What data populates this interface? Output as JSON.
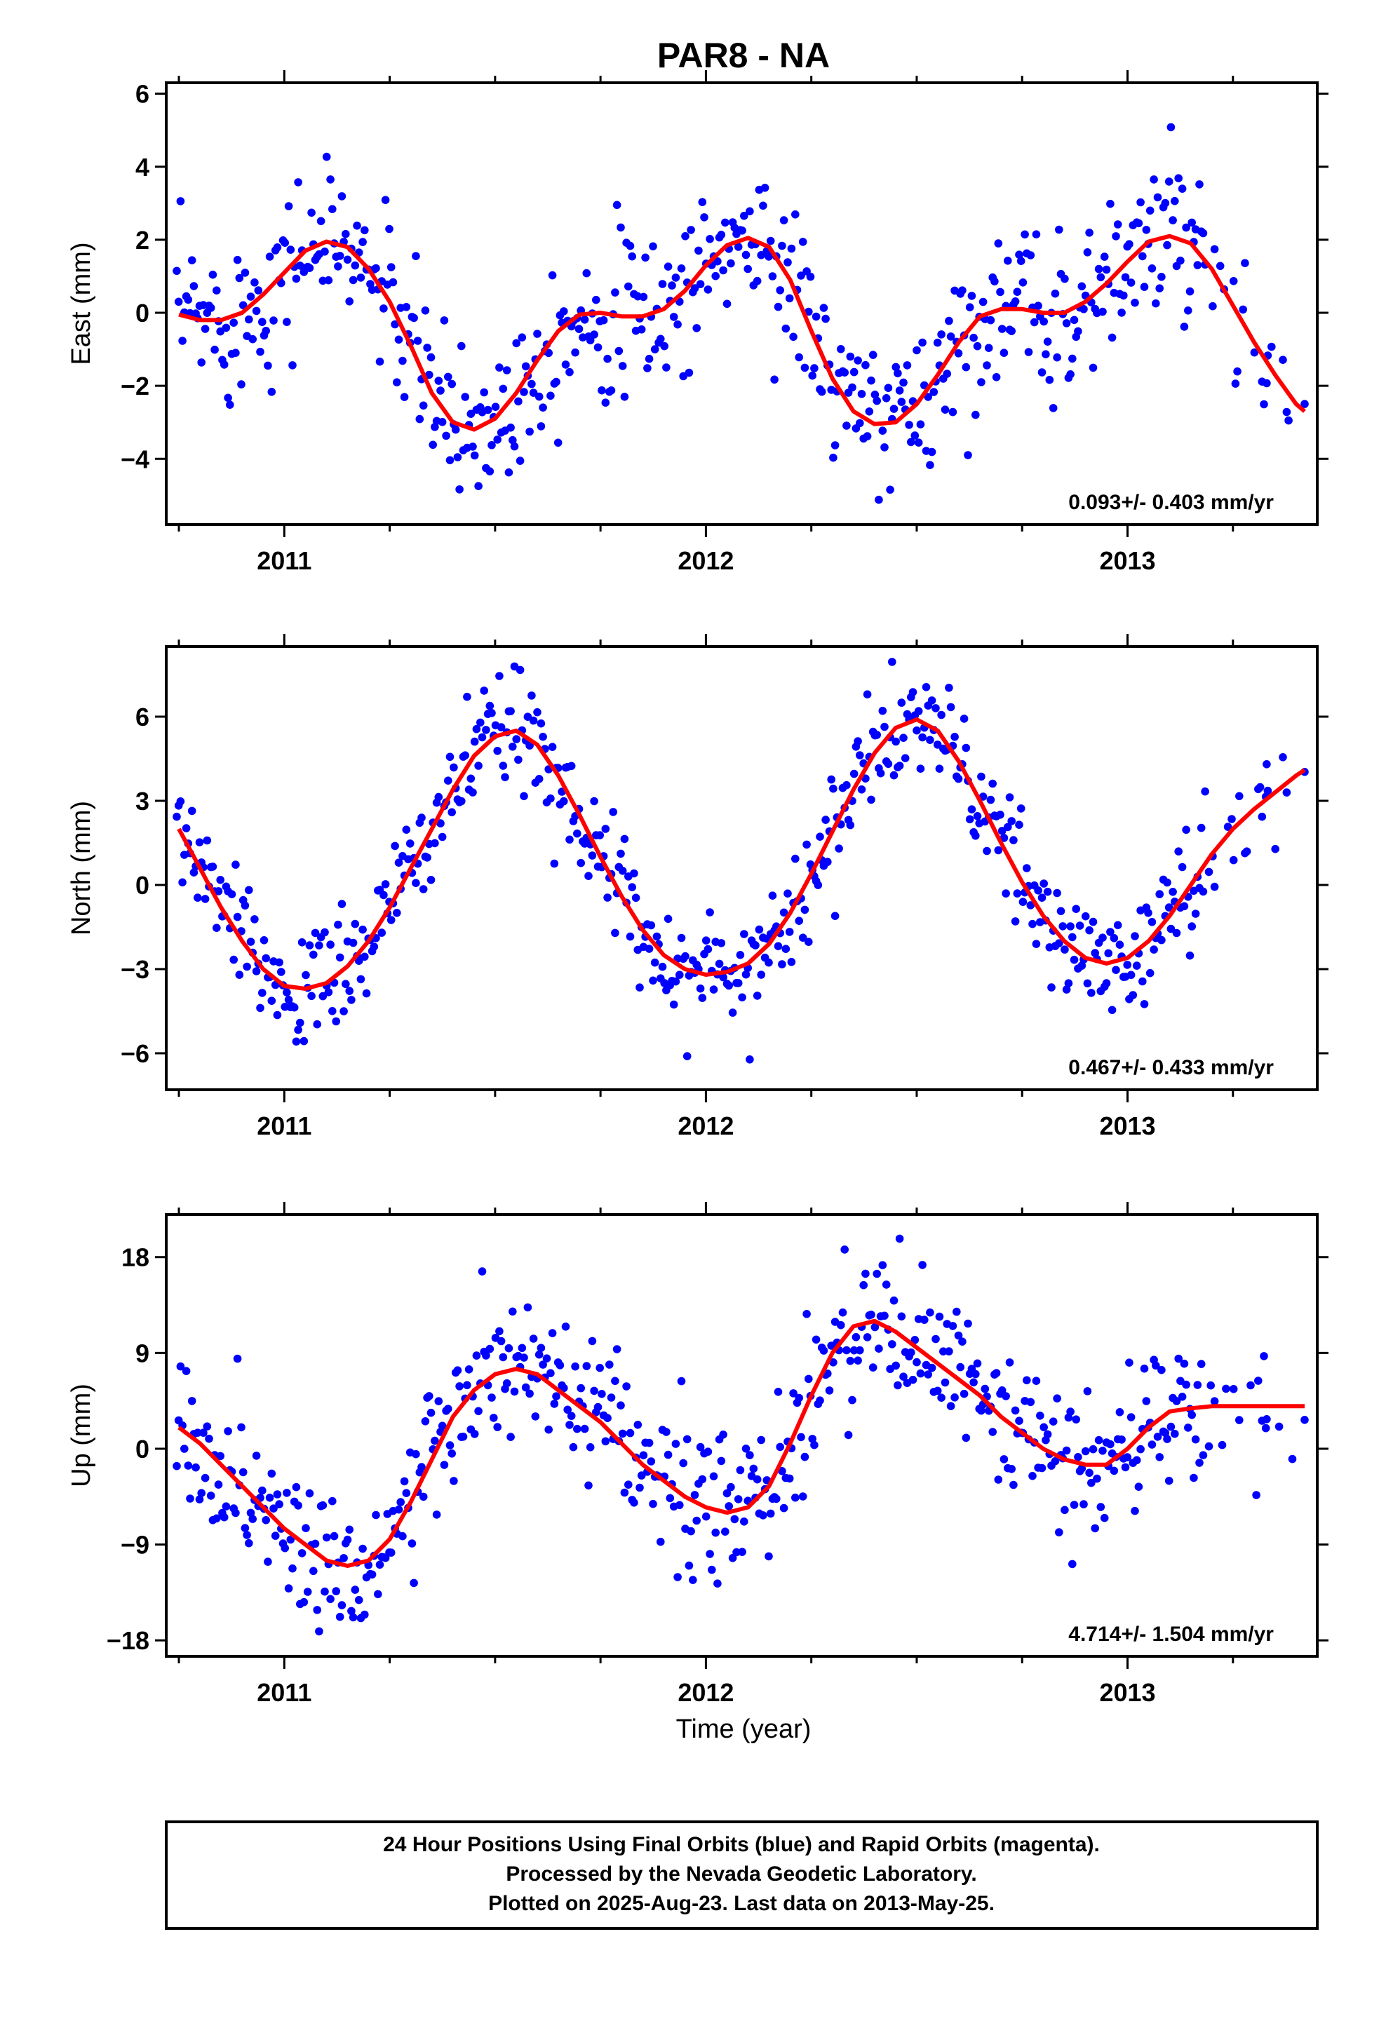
{
  "chart_data": {
    "title": "PAR8 - NA",
    "x_label": "Time (year)",
    "type": "scatter",
    "x_range": [
      2010.72,
      2013.45
    ],
    "x_ticks": [
      2011,
      2012,
      2013
    ],
    "colors": {
      "data": "#0000ff",
      "model": "#ff0000"
    },
    "panels": [
      {
        "name": "east",
        "ylabel": "East (mm)",
        "ylim": [
          -5.8,
          6.3
        ],
        "yticks": [
          -4,
          -2,
          0,
          2,
          4,
          6
        ],
        "ytick_labels": [
          "−4",
          "−2",
          "0",
          "2",
          "4",
          "6"
        ],
        "rate": "0.093+/- 0.403 mm/yr",
        "trend": {
          "x": [
            2010.75,
            2010.8,
            2010.85,
            2010.9,
            2010.95,
            2011.0,
            2011.05,
            2011.1,
            2011.15,
            2011.2,
            2011.25,
            2011.3,
            2011.35,
            2011.4,
            2011.45,
            2011.5,
            2011.55,
            2011.6,
            2011.65,
            2011.7,
            2011.75,
            2011.8,
            2011.85,
            2011.9,
            2011.95,
            2012.0,
            2012.05,
            2012.1,
            2012.15,
            2012.2,
            2012.25,
            2012.3,
            2012.35,
            2012.4,
            2012.45,
            2012.5,
            2012.55,
            2012.6,
            2012.65,
            2012.7,
            2012.75,
            2012.8,
            2012.85,
            2012.9,
            2012.95,
            2013.0,
            2013.05,
            2013.1,
            2013.15,
            2013.2,
            2013.25,
            2013.3,
            2013.35,
            2013.4,
            2013.42
          ],
          "y": [
            -0.05,
            -0.2,
            -0.2,
            0.0,
            0.5,
            1.1,
            1.7,
            1.95,
            1.8,
            1.2,
            0.3,
            -0.9,
            -2.2,
            -3.0,
            -3.2,
            -2.9,
            -2.2,
            -1.3,
            -0.5,
            -0.05,
            0.0,
            -0.1,
            -0.1,
            0.1,
            0.6,
            1.3,
            1.85,
            2.05,
            1.8,
            0.9,
            -0.5,
            -1.8,
            -2.7,
            -3.05,
            -3.0,
            -2.5,
            -1.7,
            -0.8,
            -0.1,
            0.1,
            0.1,
            0.0,
            0.0,
            0.3,
            0.8,
            1.4,
            1.95,
            2.1,
            1.9,
            1.2,
            0.2,
            -0.8,
            -1.7,
            -2.5,
            -2.7
          ]
        }
      },
      {
        "name": "north",
        "ylabel": "North (mm)",
        "ylim": [
          -7.3,
          8.5
        ],
        "yticks": [
          -6,
          -3,
          0,
          3,
          6
        ],
        "ytick_labels": [
          "−6",
          "−3",
          "0",
          "3",
          "6"
        ],
        "rate": "0.467+/- 0.433 mm/yr",
        "trend": {
          "x": [
            2010.75,
            2010.8,
            2010.85,
            2010.9,
            2010.95,
            2011.0,
            2011.05,
            2011.1,
            2011.15,
            2011.2,
            2011.25,
            2011.3,
            2011.35,
            2011.4,
            2011.45,
            2011.5,
            2011.55,
            2011.6,
            2011.65,
            2011.7,
            2011.75,
            2011.8,
            2011.85,
            2011.9,
            2011.95,
            2012.0,
            2012.05,
            2012.1,
            2012.15,
            2012.2,
            2012.25,
            2012.3,
            2012.35,
            2012.4,
            2012.45,
            2012.5,
            2012.55,
            2012.6,
            2012.65,
            2012.7,
            2012.75,
            2012.8,
            2012.85,
            2012.9,
            2012.95,
            2013.0,
            2013.05,
            2013.1,
            2013.15,
            2013.2,
            2013.25,
            2013.3,
            2013.35,
            2013.4,
            2013.42
          ],
          "y": [
            2.0,
            0.6,
            -0.8,
            -2.0,
            -3.0,
            -3.6,
            -3.7,
            -3.5,
            -2.9,
            -2.0,
            -0.8,
            0.6,
            2.0,
            3.4,
            4.6,
            5.3,
            5.5,
            5.0,
            3.9,
            2.5,
            1.0,
            -0.4,
            -1.6,
            -2.5,
            -3.0,
            -3.2,
            -3.1,
            -2.8,
            -2.1,
            -1.0,
            0.4,
            1.9,
            3.4,
            4.7,
            5.6,
            5.9,
            5.5,
            4.4,
            3.0,
            1.5,
            0.1,
            -1.1,
            -2.0,
            -2.6,
            -2.8,
            -2.6,
            -2.0,
            -1.1,
            0.0,
            1.1,
            2.0,
            2.7,
            3.3,
            3.9,
            4.1
          ]
        }
      },
      {
        "name": "up",
        "ylabel": "Up (mm)",
        "ylim": [
          -19.5,
          22.0
        ],
        "yticks": [
          -18,
          -9,
          0,
          9,
          18
        ],
        "ytick_labels": [
          "−18",
          "−9",
          "0",
          "9",
          "18"
        ],
        "rate": "4.714+/- 1.504 mm/yr",
        "trend": {
          "x": [
            2010.75,
            2010.8,
            2010.85,
            2010.9,
            2010.95,
            2011.0,
            2011.05,
            2011.1,
            2011.15,
            2011.2,
            2011.25,
            2011.3,
            2011.35,
            2011.4,
            2011.45,
            2011.5,
            2011.55,
            2011.6,
            2011.65,
            2011.7,
            2011.75,
            2011.8,
            2011.85,
            2011.9,
            2011.95,
            2012.0,
            2012.05,
            2012.1,
            2012.15,
            2012.2,
            2012.25,
            2012.3,
            2012.35,
            2012.4,
            2012.45,
            2012.5,
            2012.55,
            2012.6,
            2012.65,
            2012.7,
            2012.75,
            2012.8,
            2012.85,
            2012.9,
            2012.95,
            2013.0,
            2013.05,
            2013.1,
            2013.15,
            2013.2,
            2013.25,
            2013.3,
            2013.35,
            2013.4,
            2013.42
          ],
          "y": [
            2.0,
            0.5,
            -1.5,
            -3.5,
            -5.5,
            -7.5,
            -9.0,
            -10.5,
            -11.0,
            -10.5,
            -8.5,
            -5.0,
            -1.0,
            3.0,
            5.5,
            7.0,
            7.5,
            7.0,
            5.5,
            4.0,
            2.5,
            0.5,
            -1.5,
            -3.0,
            -4.5,
            -5.5,
            -6.0,
            -5.5,
            -3.5,
            0.5,
            5.0,
            9.0,
            11.5,
            12.0,
            11.0,
            9.5,
            8.0,
            6.5,
            5.0,
            3.0,
            1.5,
            0.0,
            -1.0,
            -1.5,
            -1.5,
            0.0,
            2.0,
            3.5,
            3.8,
            4.0,
            4.0,
            4.0,
            4.0,
            4.0,
            4.0
          ]
        }
      }
    ]
  },
  "footer": {
    "line1": "24 Hour Positions Using Final Orbits (blue) and Rapid Orbits (magenta).",
    "line2": "Processed by the Nevada Geodetic Laboratory.",
    "line3": "Plotted on 2025-Aug-23. Last data on 2013-May-25."
  }
}
